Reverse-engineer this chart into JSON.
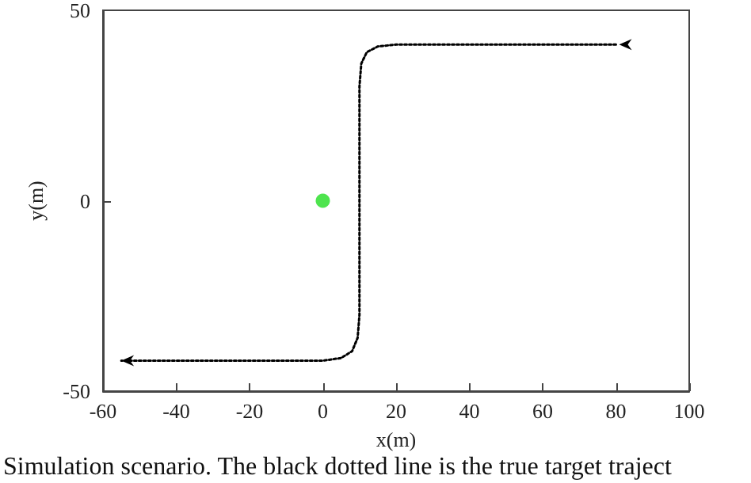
{
  "chart_data": {
    "type": "line",
    "xlabel": "x(m)",
    "ylabel": "y(m)",
    "annotations": [
      "Simulation scenario. The black dotted line is the true target traject"
    ],
    "xlim": [
      -60,
      100
    ],
    "xticks": [
      -60,
      -40,
      -20,
      0,
      20,
      40,
      60,
      80,
      100
    ],
    "ylim": [
      -50,
      50
    ],
    "yticks": [
      -50,
      0,
      50
    ],
    "grid": false,
    "series": [
      {
        "color": "#000000",
        "line_style": "dotted",
        "marker": "none",
        "x": [
          80,
          20,
          15,
          12,
          10.5,
          10,
          10,
          9.5,
          8,
          5,
          0,
          -55
        ],
        "values": [
          41,
          41,
          40.5,
          39,
          36,
          30,
          -30,
          -36,
          -39.5,
          -41.3,
          -42,
          -42
        ]
      },
      {
        "type": "scatter",
        "color": "#22dd22",
        "marker": "circle",
        "x": [
          0
        ],
        "values": [
          0
        ]
      }
    ]
  }
}
